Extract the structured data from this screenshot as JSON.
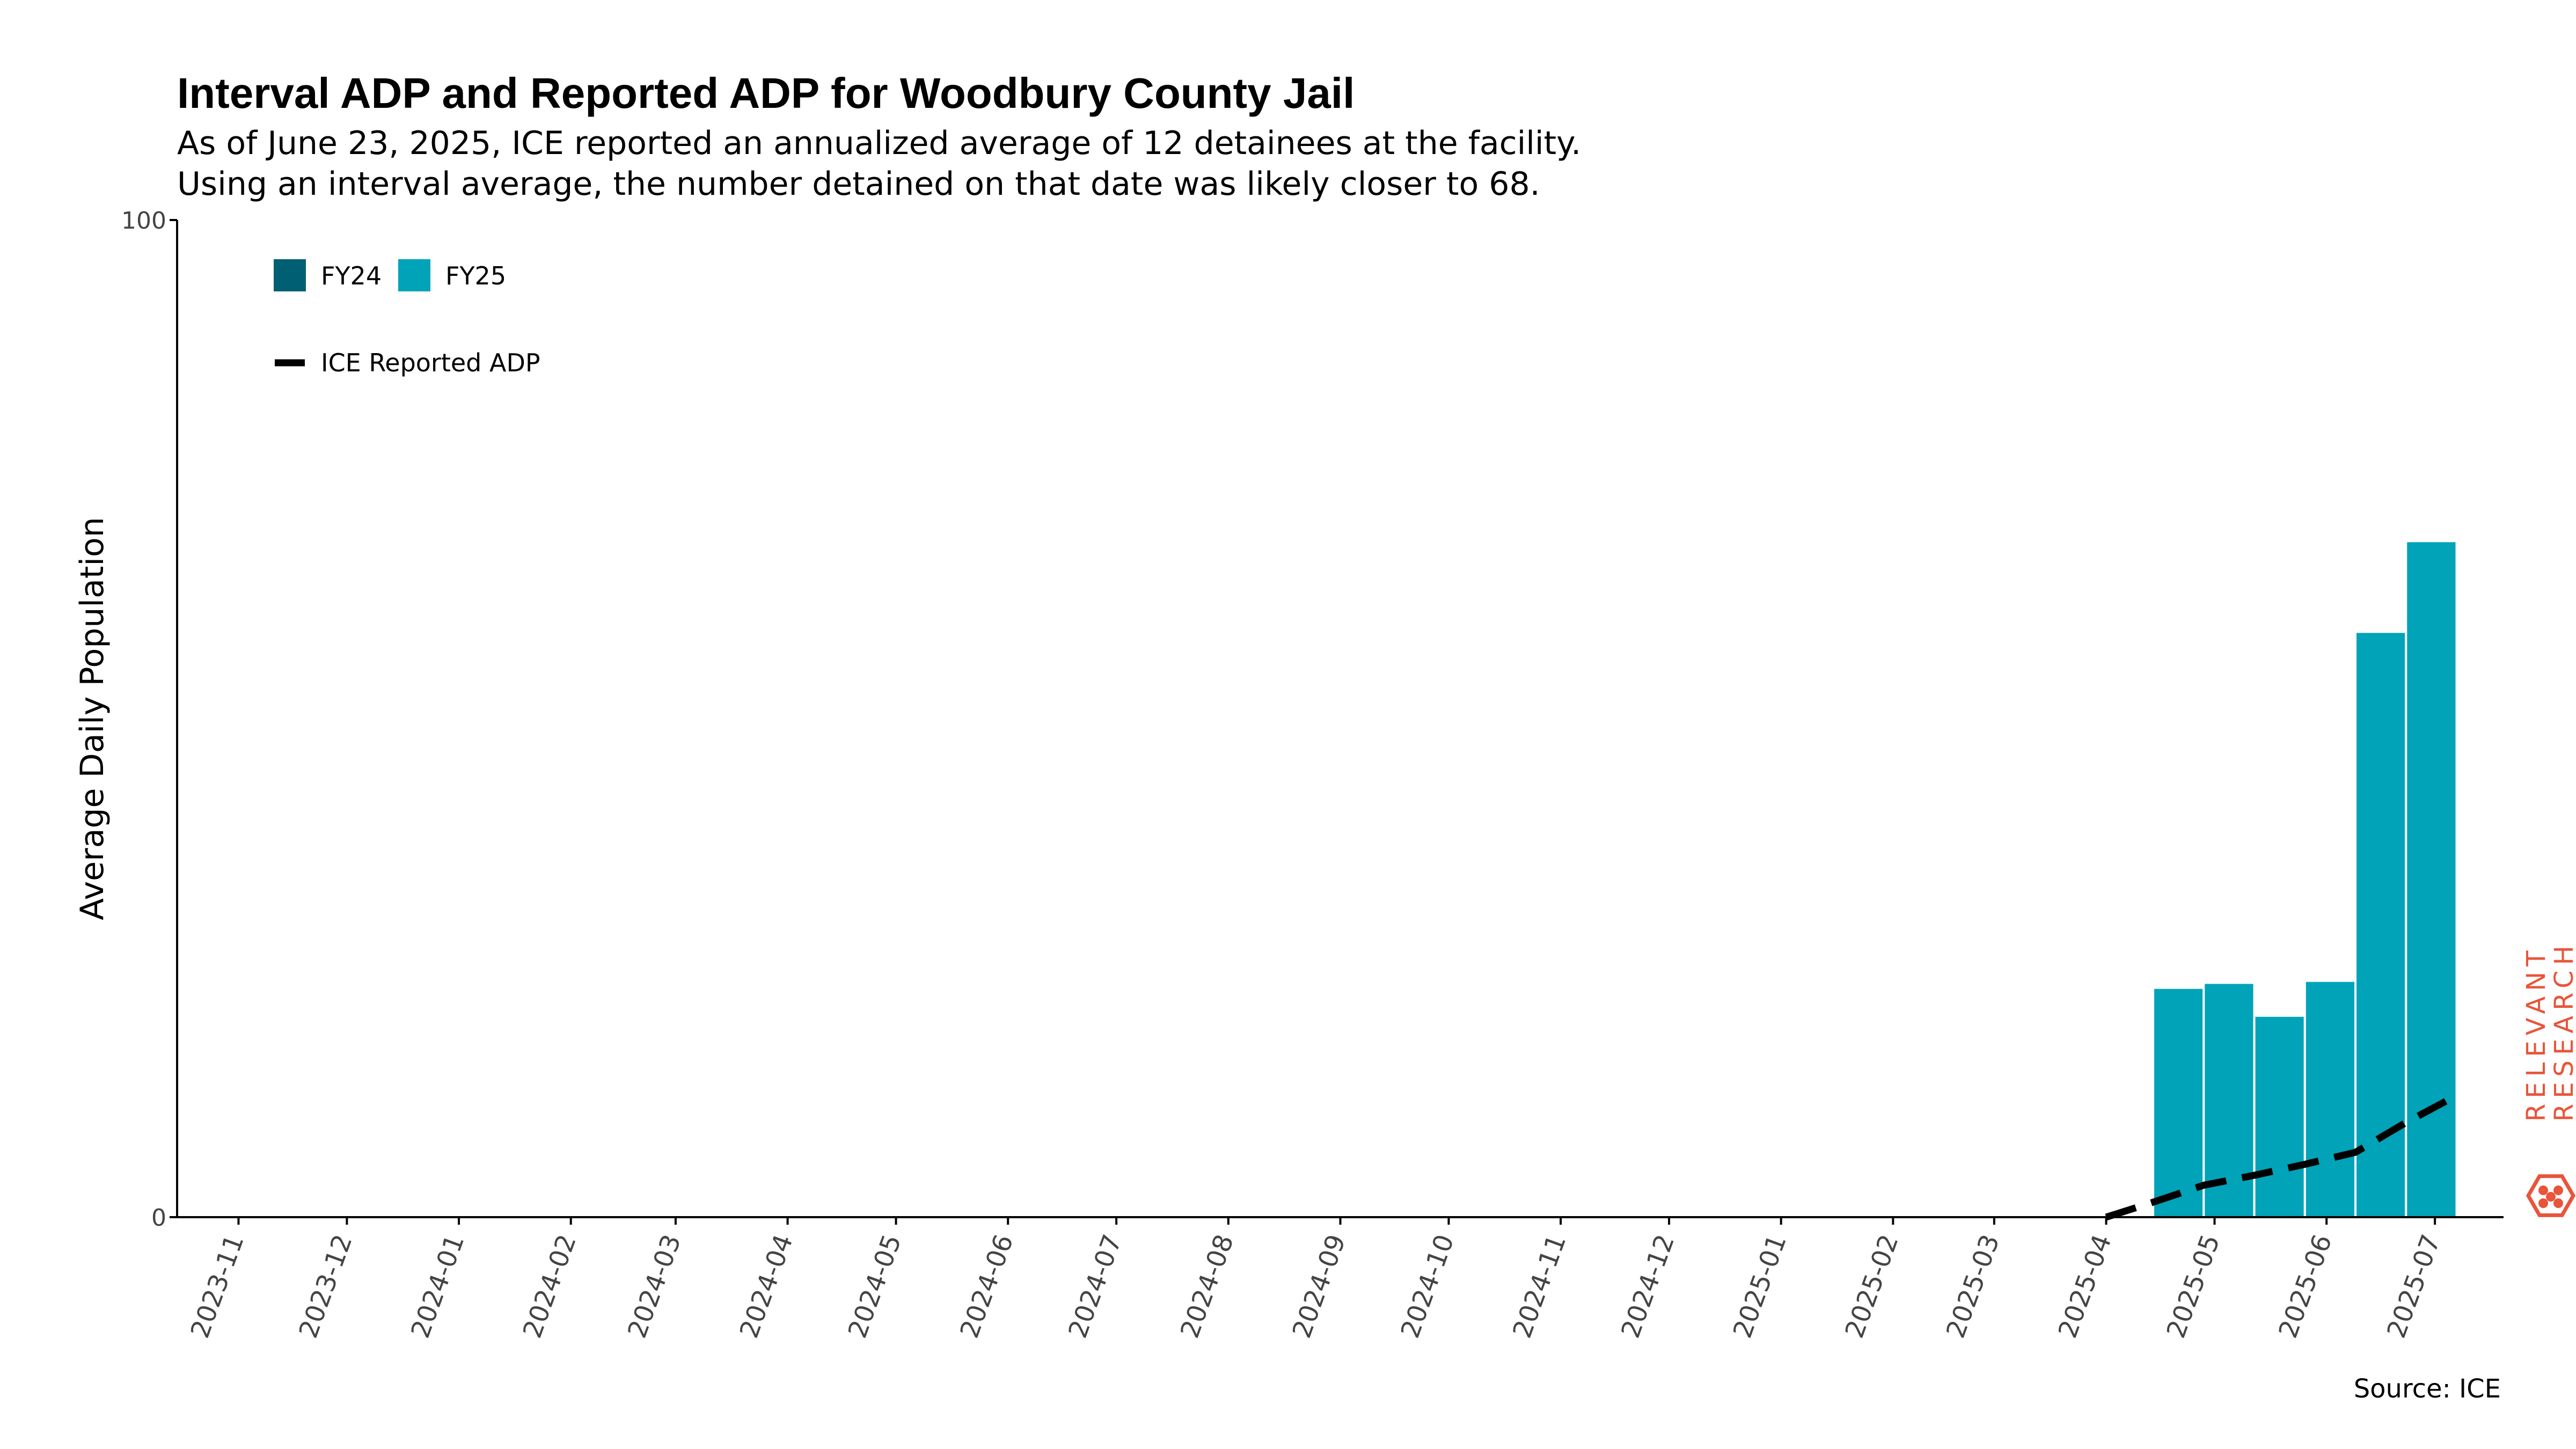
{
  "chart_data": {
    "type": "bar",
    "title": "Interval ADP and Reported ADP for Woodbury County Jail",
    "subtitle": [
      "As of June 23, 2025, ICE reported an annualized average of 12 detainees at the facility.",
      "Using an interval average, the number detained on that date was likely closer to 68."
    ],
    "ylabel": "Average Daily Population",
    "xlabel": "",
    "ylim": [
      0,
      100
    ],
    "yticks": [
      0,
      100
    ],
    "x_ticks": [
      "2023-11",
      "2023-12",
      "2024-01",
      "2024-02",
      "2024-03",
      "2024-04",
      "2024-05",
      "2024-06",
      "2024-07",
      "2024-08",
      "2024-09",
      "2024-10",
      "2024-11",
      "2024-12",
      "2025-01",
      "2025-02",
      "2025-03",
      "2025-04",
      "2025-05",
      "2025-06",
      "2025-07"
    ],
    "x_range": [
      "2023-10-15",
      "2025-07-20"
    ],
    "bar_series": [
      {
        "name": "FY24",
        "color": "#005f73",
        "bars": []
      },
      {
        "name": "FY25",
        "color": "#00a3b8",
        "bars": [
          {
            "start": "2025-04-14",
            "end": "2025-04-28",
            "value": 23
          },
          {
            "start": "2025-04-28",
            "end": "2025-05-12",
            "value": 23.5
          },
          {
            "start": "2025-05-12",
            "end": "2025-05-26",
            "value": 20.2
          },
          {
            "start": "2025-05-26",
            "end": "2025-06-09",
            "value": 23.7
          },
          {
            "start": "2025-06-09",
            "end": "2025-06-23",
            "value": 58.7
          },
          {
            "start": "2025-06-23",
            "end": "2025-07-07",
            "value": 67.8
          }
        ]
      }
    ],
    "line_series": [
      {
        "name": "ICE Reported ADP",
        "color": "#000000",
        "style": "dashed",
        "points": [
          {
            "x": "2025-04-01",
            "y": 0
          },
          {
            "x": "2025-04-14",
            "y": 1.5
          },
          {
            "x": "2025-04-28",
            "y": 3.2
          },
          {
            "x": "2025-05-12",
            "y": 4.2
          },
          {
            "x": "2025-05-26",
            "y": 5.3
          },
          {
            "x": "2025-06-09",
            "y": 6.5
          },
          {
            "x": "2025-06-23",
            "y": 9.5
          },
          {
            "x": "2025-07-07",
            "y": 12.2
          }
        ]
      }
    ],
    "legend": {
      "position": "top-left"
    },
    "grid": false,
    "source": "Source: ICE"
  },
  "watermark": {
    "line1": "RELEVANT",
    "line2": "RESEARCH",
    "color": "#e8553a"
  }
}
